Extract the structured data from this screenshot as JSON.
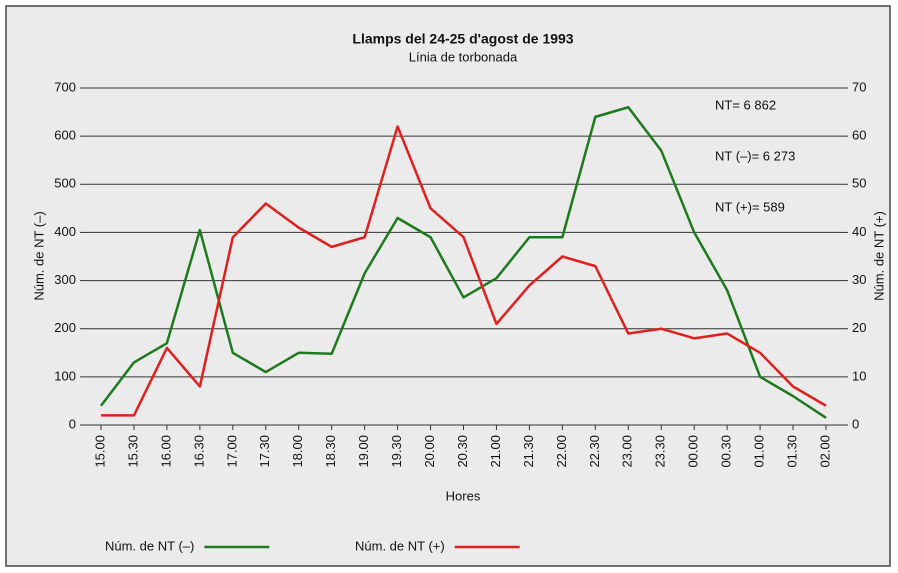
{
  "chart_data": {
    "type": "line",
    "title": "Llamps del 24-25 d'agost de 1993",
    "subtitle": "Línia de torbonada",
    "x_label": "Hores",
    "y_label": "Núm. de NT (–)",
    "y2_label": "Núm. de NT (+)",
    "annotations": [
      "NT= 6 862",
      "NT (–)= 6 273",
      "NT (+)= 589"
    ],
    "categories": [
      "15.00",
      "15.30",
      "16.00",
      "16.30",
      "17.00",
      "17.30",
      "18.00",
      "18.30",
      "19.00",
      "19.30",
      "20.00",
      "20.30",
      "21.00",
      "21.30",
      "22.00",
      "22.30",
      "23.00",
      "23.30",
      "00.00",
      "00.30",
      "01.00",
      "01.30",
      "02.00"
    ],
    "series": [
      {
        "name": "Núm. de NT (–)",
        "color": "#1e7a1e",
        "values": [
          40,
          130,
          170,
          405,
          150,
          110,
          150,
          148,
          315,
          430,
          390,
          265,
          305,
          390,
          390,
          640,
          660,
          570,
          400,
          280,
          100,
          60,
          15
        ]
      },
      {
        "name": "Núm. de NT (+)",
        "color": "#e0201e",
        "axis": "y2",
        "values": [
          2,
          2,
          16,
          8,
          39,
          46,
          41,
          37,
          39,
          62,
          45,
          39,
          21,
          29,
          35,
          33,
          19,
          20,
          18,
          19,
          15,
          8,
          4
        ]
      }
    ],
    "ylim": [
      0,
      700
    ],
    "yticks": [
      0,
      100,
      200,
      300,
      400,
      500,
      600,
      700
    ],
    "y2lim": [
      0,
      70
    ],
    "y2ticks": [
      0,
      10,
      20,
      30,
      40,
      50,
      60,
      70
    ],
    "grid": true,
    "legend": "bottom"
  }
}
